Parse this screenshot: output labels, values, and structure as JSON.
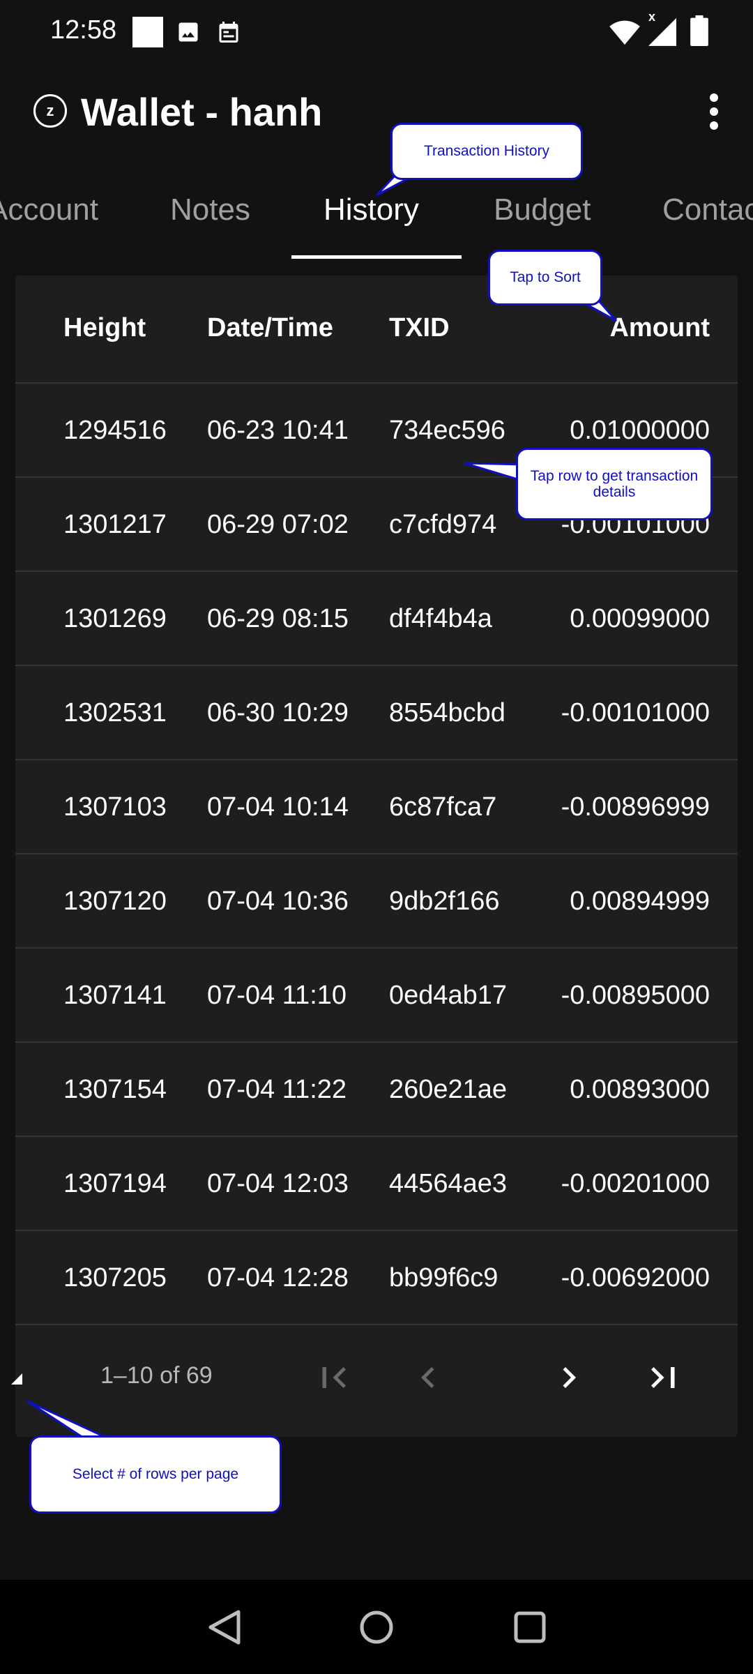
{
  "status_bar": {
    "time": "12:58",
    "left_icons": [
      "white-square-icon",
      "image-icon",
      "calendar-icon"
    ],
    "right_icons": [
      "wifi-icon",
      "signal-icon",
      "battery-icon"
    ],
    "signal_mark": "x"
  },
  "app_bar": {
    "logo_letter": "z",
    "title": "Wallet - hanh",
    "overflow_icon": "more-vert-icon"
  },
  "tabs": [
    {
      "label": "Account",
      "active": false
    },
    {
      "label": "Notes",
      "active": false
    },
    {
      "label": "History",
      "active": true
    },
    {
      "label": "Budget",
      "active": false
    },
    {
      "label": "Contacts",
      "active": false
    }
  ],
  "table": {
    "columns": [
      "Height",
      "Date/Time",
      "TXID",
      "Amount"
    ],
    "rows": [
      {
        "height": "1294516",
        "datetime": "06-23 10:41",
        "txid": "734ec596",
        "amount": "0.01000000"
      },
      {
        "height": "1301217",
        "datetime": "06-29 07:02",
        "txid": "c7cfd974",
        "amount": "-0.00101000"
      },
      {
        "height": "1301269",
        "datetime": "06-29 08:15",
        "txid": "df4f4b4a",
        "amount": "0.00099000"
      },
      {
        "height": "1302531",
        "datetime": "06-30 10:29",
        "txid": "8554bcbd",
        "amount": "-0.00101000"
      },
      {
        "height": "1307103",
        "datetime": "07-04 10:14",
        "txid": "6c87fca7",
        "amount": "-0.00896999"
      },
      {
        "height": "1307120",
        "datetime": "07-04 10:36",
        "txid": "9db2f166",
        "amount": "0.00894999"
      },
      {
        "height": "1307141",
        "datetime": "07-04 11:10",
        "txid": "0ed4ab17",
        "amount": "-0.00895000"
      },
      {
        "height": "1307154",
        "datetime": "07-04 11:22",
        "txid": "260e21ae",
        "amount": "0.00893000"
      },
      {
        "height": "1307194",
        "datetime": "07-04 12:03",
        "txid": "44564ae3",
        "amount": "-0.00201000"
      },
      {
        "height": "1307205",
        "datetime": "07-04 12:28",
        "txid": "bb99f6c9",
        "amount": "-0.00692000"
      }
    ],
    "pagination": {
      "label": "1–10 of 69",
      "first_icon": "first-page-icon",
      "prev_icon": "chevron-left-icon",
      "next_icon": "chevron-right-icon",
      "last_icon": "last-page-icon"
    }
  },
  "tooltips": {
    "history": "Transaction History",
    "sort": "Tap to Sort",
    "row": "Tap row to get transaction details",
    "rows_per_page": "Select # of rows per page"
  },
  "nav_bar": {
    "icons": [
      "back-icon",
      "home-icon",
      "recents-icon"
    ]
  },
  "colors": {
    "background": "#121212",
    "card": "#1e1e1e",
    "tooltip_border": "#1010c0",
    "tooltip_text": "#1010c0"
  }
}
